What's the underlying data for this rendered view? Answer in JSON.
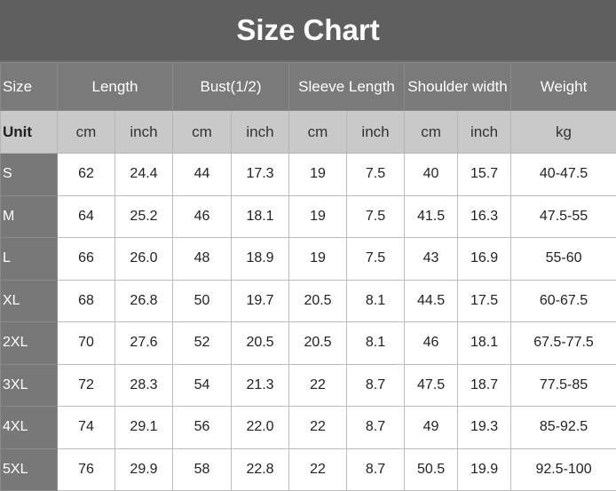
{
  "title": "Size Chart",
  "colors": {
    "title_bg": "#5f5f5f",
    "header_bg": "#7a7a7a",
    "unit_bg": "#c9c9c9",
    "size_col_bg": "#787878"
  },
  "table": {
    "headers": [
      {
        "label": "Size",
        "span": 1
      },
      {
        "label": "Length",
        "span": 2
      },
      {
        "label": "Bust(1/2)",
        "span": 2
      },
      {
        "label": "Sleeve Length",
        "span": 2
      },
      {
        "label": "Shoulder width",
        "span": 2
      },
      {
        "label": "Weight",
        "span": 1
      }
    ],
    "units": [
      "Unit",
      "cm",
      "inch",
      "cm",
      "inch",
      "cm",
      "inch",
      "cm",
      "inch",
      "kg"
    ],
    "rows": [
      [
        "S",
        "62",
        "24.4",
        "44",
        "17.3",
        "19",
        "7.5",
        "40",
        "15.7",
        "40-47.5"
      ],
      [
        "M",
        "64",
        "25.2",
        "46",
        "18.1",
        "19",
        "7.5",
        "41.5",
        "16.3",
        "47.5-55"
      ],
      [
        "L",
        "66",
        "26.0",
        "48",
        "18.9",
        "19",
        "7.5",
        "43",
        "16.9",
        "55-60"
      ],
      [
        "XL",
        "68",
        "26.8",
        "50",
        "19.7",
        "20.5",
        "8.1",
        "44.5",
        "17.5",
        "60-67.5"
      ],
      [
        "2XL",
        "70",
        "27.6",
        "52",
        "20.5",
        "20.5",
        "8.1",
        "46",
        "18.1",
        "67.5-77.5"
      ],
      [
        "3XL",
        "72",
        "28.3",
        "54",
        "21.3",
        "22",
        "8.7",
        "47.5",
        "18.7",
        "77.5-85"
      ],
      [
        "4XL",
        "74",
        "29.1",
        "56",
        "22.0",
        "22",
        "8.7",
        "49",
        "19.3",
        "85-92.5"
      ],
      [
        "5XL",
        "76",
        "29.9",
        "58",
        "22.8",
        "22",
        "8.7",
        "50.5",
        "19.9",
        "92.5-100"
      ]
    ]
  }
}
